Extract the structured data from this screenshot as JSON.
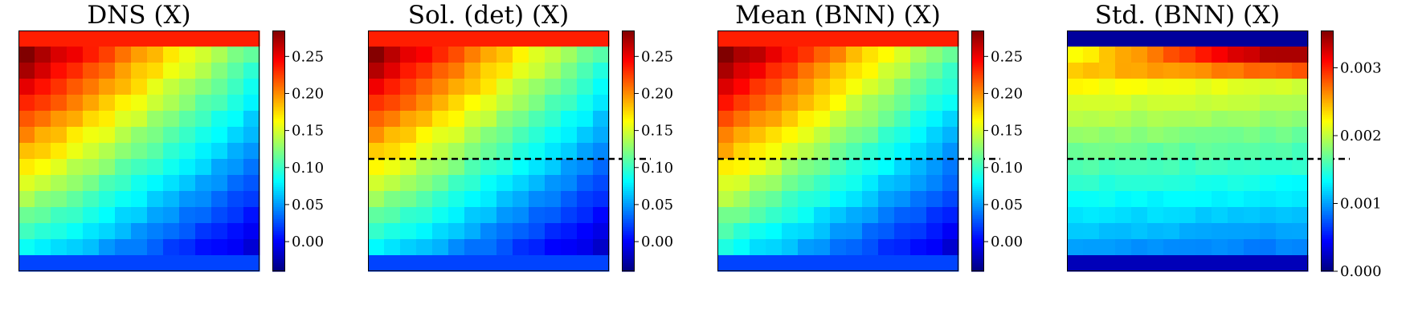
{
  "figure": {
    "dashed_line_color": "#000000"
  },
  "chart_data": [
    {
      "type": "heatmap",
      "title": "DNS (X)",
      "field": "dns",
      "dashed_line": false,
      "colorscale": "jet",
      "vmin": -0.04,
      "vmax": 0.285,
      "colorbar_ticks": [
        0.0,
        0.05,
        0.1,
        0.15,
        0.2,
        0.25
      ],
      "colorbar_tick_labels": [
        "0.00",
        "0.05",
        "0.10",
        "0.15",
        "0.20",
        "0.25"
      ]
    },
    {
      "type": "heatmap",
      "title": "Sol. (det) (X)",
      "field": "det",
      "dashed_line": true,
      "colorscale": "jet",
      "vmin": -0.04,
      "vmax": 0.285,
      "colorbar_ticks": [
        0.0,
        0.05,
        0.1,
        0.15,
        0.2,
        0.25
      ],
      "colorbar_tick_labels": [
        "0.00",
        "0.05",
        "0.10",
        "0.15",
        "0.20",
        "0.25"
      ]
    },
    {
      "type": "heatmap",
      "title": "Mean (BNN) (X)",
      "field": "mean",
      "dashed_line": true,
      "colorscale": "jet",
      "vmin": -0.04,
      "vmax": 0.285,
      "colorbar_ticks": [
        0.0,
        0.05,
        0.1,
        0.15,
        0.2,
        0.25
      ],
      "colorbar_tick_labels": [
        "0.00",
        "0.05",
        "0.10",
        "0.15",
        "0.20",
        "0.25"
      ]
    },
    {
      "type": "heatmap",
      "title": "Std. (BNN) (X)",
      "field": "std",
      "dashed_line": true,
      "colorscale": "jet",
      "vmin": 0.0,
      "vmax": 0.00355,
      "colorbar_ticks": [
        0.0,
        0.001,
        0.002,
        0.003
      ],
      "colorbar_tick_labels": [
        "0.000",
        "0.001",
        "0.002",
        "0.003"
      ]
    }
  ]
}
